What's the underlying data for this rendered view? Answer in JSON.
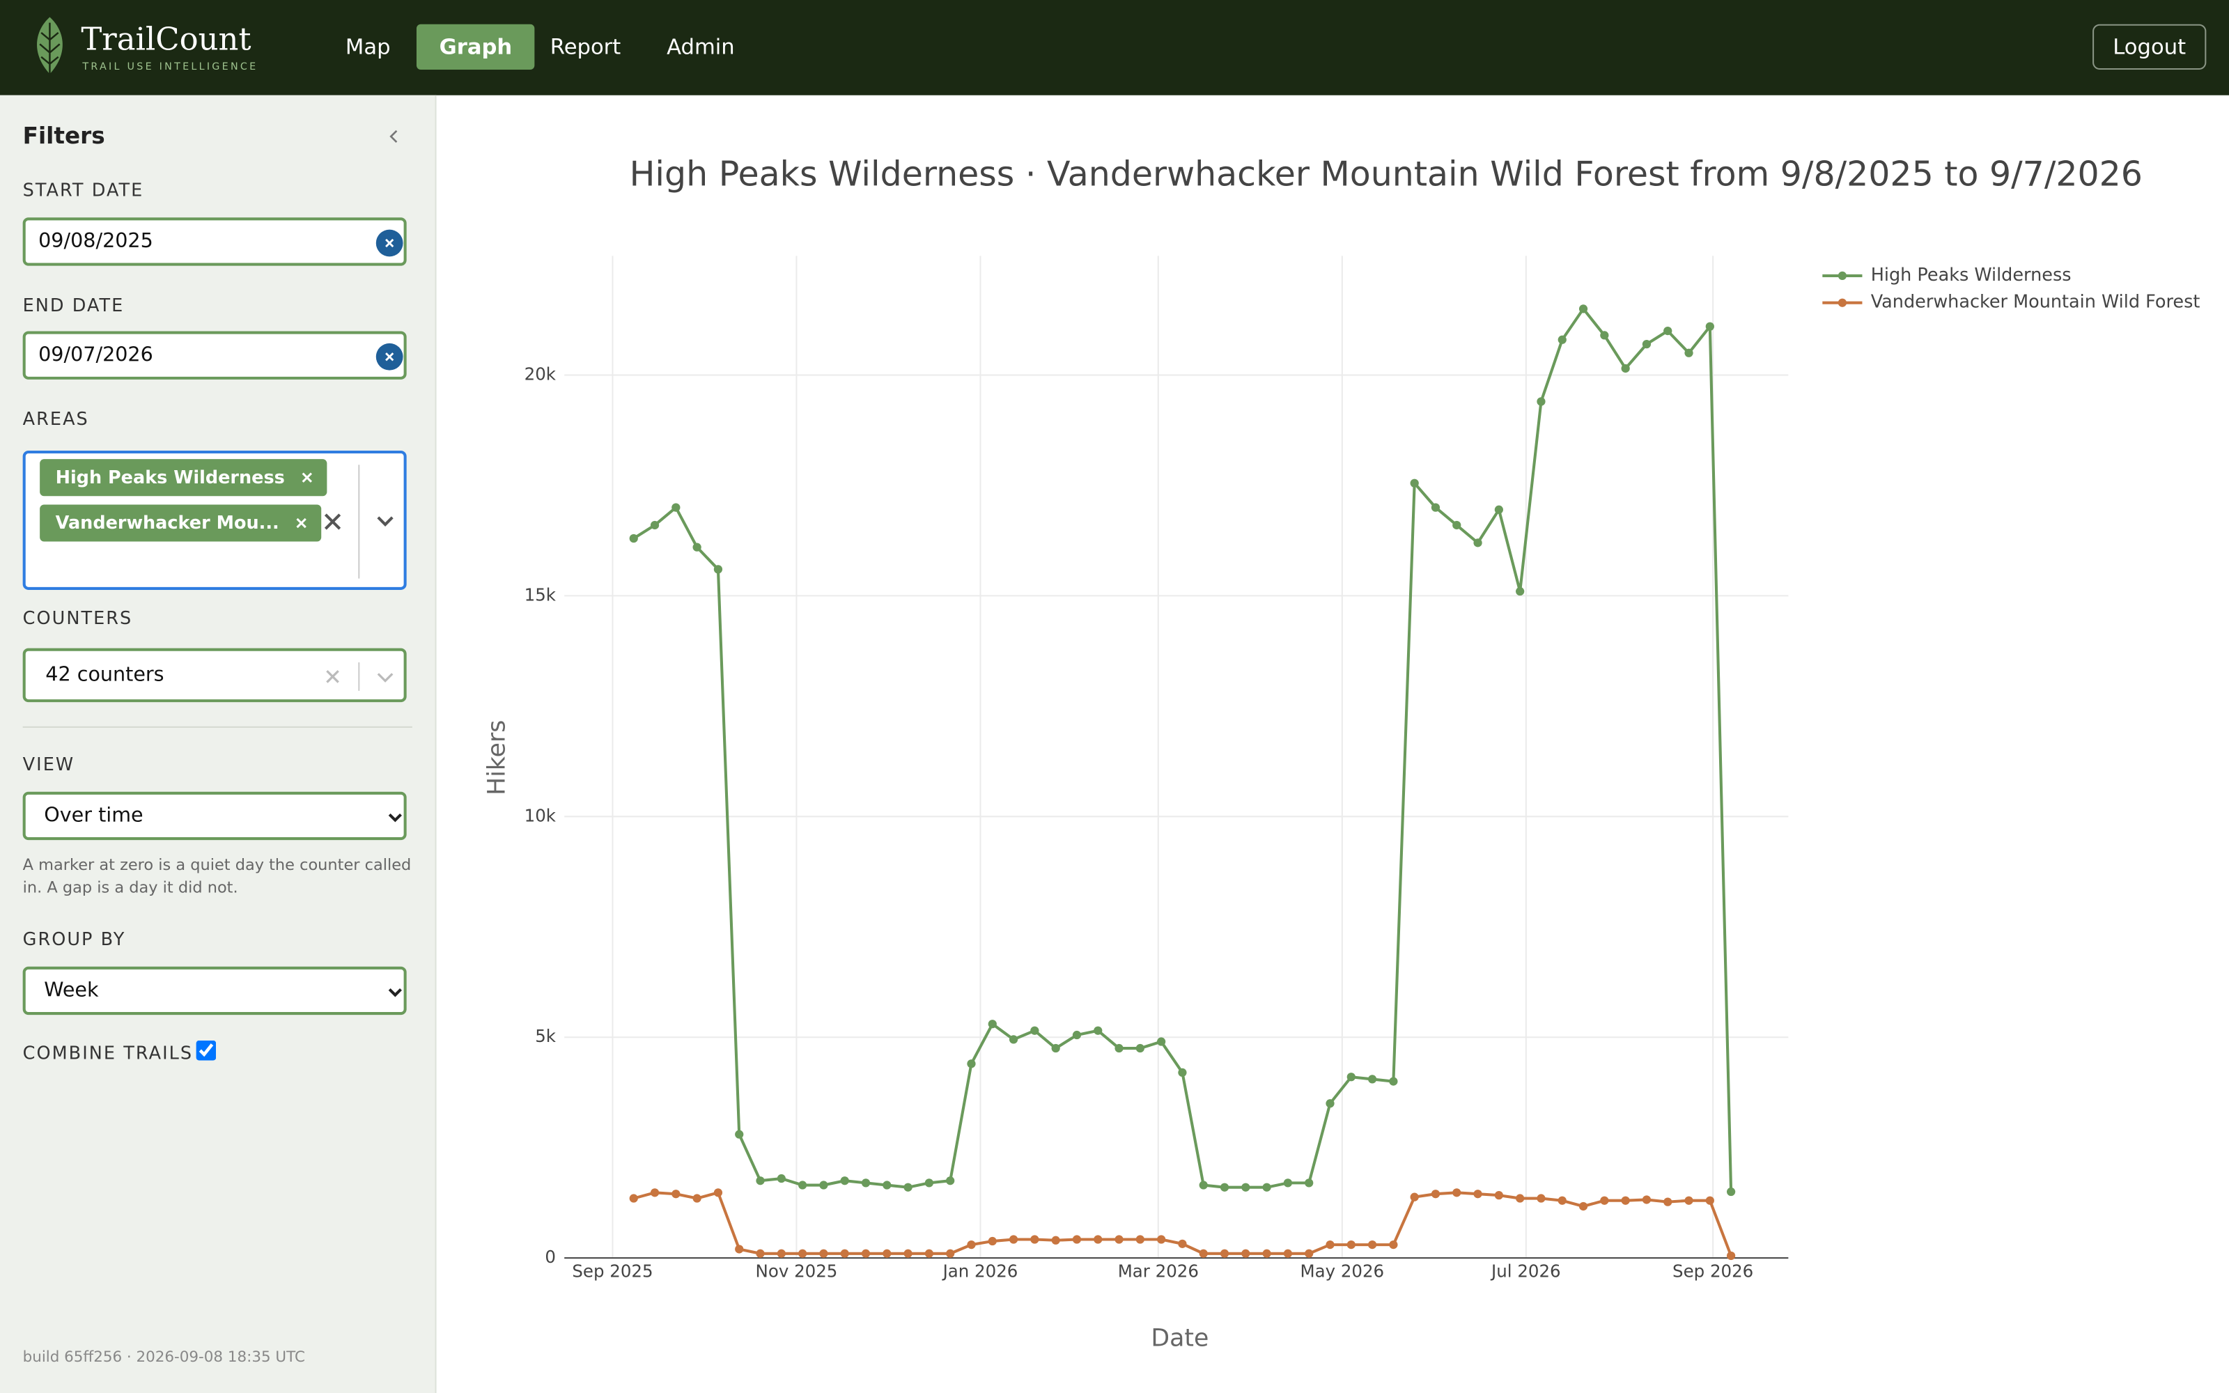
{
  "header": {
    "brand": "TrailCount",
    "tagline": "TRAIL USE INTELLIGENCE",
    "nav": [
      "Map",
      "Graph",
      "Report",
      "Admin"
    ],
    "active_nav": "Graph",
    "logout": "Logout"
  },
  "sidebar": {
    "title": "Filters",
    "start_label": "START DATE",
    "start_value": "09/08/2025",
    "end_label": "END DATE",
    "end_value": "09/07/2026",
    "areas_label": "AREAS",
    "areas": [
      "High Peaks Wilderness",
      "Vanderwhacker Mou..."
    ],
    "counters_label": "COUNTERS",
    "counters_value": "42 counters",
    "view_label": "VIEW",
    "view_value": "Over time",
    "note": "A marker at zero is a quiet day the counter called in. A gap is a day it did not.",
    "group_label": "GROUP BY",
    "group_value": "Week",
    "combine_label": "COMBINE TRAILS",
    "combine_checked": true,
    "build": "build 65ff256 · 2026-09-08 18:35 UTC"
  },
  "chart_data": {
    "type": "line",
    "title": "High Peaks Wilderness · Vanderwhacker Mountain Wild Forest from 9/8/2025 to 9/7/2026",
    "x_label": "Date",
    "y_label": "Hikers",
    "x": [
      "2025-09-08",
      "2025-09-15",
      "2025-09-22",
      "2025-09-29",
      "2025-10-06",
      "2025-10-13",
      "2025-10-20",
      "2025-10-27",
      "2025-11-03",
      "2025-11-10",
      "2025-11-17",
      "2025-11-24",
      "2025-12-01",
      "2025-12-08",
      "2025-12-15",
      "2025-12-22",
      "2025-12-29",
      "2026-01-05",
      "2026-01-12",
      "2026-01-19",
      "2026-01-26",
      "2026-02-02",
      "2026-02-09",
      "2026-02-16",
      "2026-02-23",
      "2026-03-02",
      "2026-03-09",
      "2026-03-16",
      "2026-03-23",
      "2026-03-30",
      "2026-04-06",
      "2026-04-13",
      "2026-04-20",
      "2026-04-27",
      "2026-05-04",
      "2026-05-11",
      "2026-05-18",
      "2026-05-25",
      "2026-06-01",
      "2026-06-08",
      "2026-06-15",
      "2026-06-22",
      "2026-06-29",
      "2026-07-06",
      "2026-07-13",
      "2026-07-20",
      "2026-07-27",
      "2026-08-03",
      "2026-08-10",
      "2026-08-17",
      "2026-08-24",
      "2026-08-31",
      "2026-09-07"
    ],
    "series": [
      {
        "name": "High Peaks Wilderness",
        "color": "#6a9a5b",
        "values": [
          16300,
          16600,
          17000,
          16100,
          15600,
          2800,
          1750,
          1800,
          1650,
          1650,
          1750,
          1700,
          1650,
          1600,
          1700,
          1750,
          4400,
          5300,
          4950,
          5150,
          4750,
          5050,
          5150,
          4750,
          4750,
          4900,
          4200,
          1650,
          1600,
          1600,
          1600,
          1700,
          1700,
          3500,
          4100,
          4050,
          4000,
          17550,
          17000,
          16600,
          16200,
          16950,
          15100,
          19400,
          20800,
          21500,
          20900,
          20150,
          20700,
          21000,
          20500,
          21100,
          1500
        ]
      },
      {
        "name": "Vanderwhacker Mountain Wild Forest",
        "color": "#c8753f",
        "values": [
          1350,
          1480,
          1450,
          1350,
          1480,
          200,
          100,
          100,
          100,
          100,
          100,
          100,
          100,
          100,
          100,
          100,
          300,
          380,
          420,
          420,
          400,
          420,
          420,
          420,
          420,
          420,
          320,
          100,
          100,
          100,
          100,
          100,
          100,
          300,
          300,
          300,
          300,
          1380,
          1450,
          1480,
          1450,
          1420,
          1350,
          1350,
          1300,
          1170,
          1300,
          1300,
          1320,
          1270,
          1300,
          1300,
          50
        ]
      }
    ],
    "xlim": [
      "2025-08-16",
      "2026-09-26"
    ],
    "xticks": [
      {
        "value": "2025-09-01",
        "label": "Sep 2025"
      },
      {
        "value": "2025-11-01",
        "label": "Nov 2025"
      },
      {
        "value": "2026-01-01",
        "label": "Jan 2026"
      },
      {
        "value": "2026-03-01",
        "label": "Mar 2026"
      },
      {
        "value": "2026-05-01",
        "label": "May 2026"
      },
      {
        "value": "2026-07-01",
        "label": "Jul 2026"
      },
      {
        "value": "2026-09-01",
        "label": "Sep 2026"
      }
    ],
    "ylim": [
      0,
      22700
    ],
    "yticks": [
      0,
      {
        "value": 5000,
        "label": "5k"
      },
      {
        "value": 10000,
        "label": "10k"
      },
      {
        "value": 15000,
        "label": "15k"
      },
      {
        "value": 20000,
        "label": "20k"
      }
    ],
    "grid": true,
    "legend": "top-right"
  }
}
